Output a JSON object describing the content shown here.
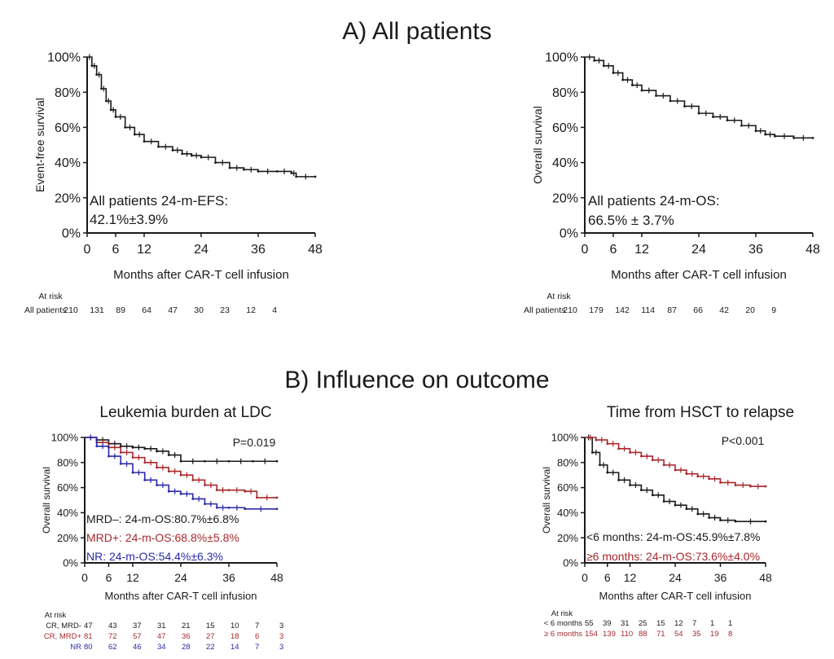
{
  "figure": {
    "section_a_title": "A) All patients",
    "section_b_title": "B) Influence on outcome"
  },
  "colors": {
    "black": "#1a1a1a",
    "red": "#a8282c",
    "blue": "#2a2aa6",
    "gray": "#5a5a5a"
  },
  "chart_data": [
    {
      "id": "efs",
      "type": "line",
      "subtitle": "",
      "xlabel": "Months after CAR-T cell infusion",
      "ylabel": "Event-free survival",
      "xticks": [
        0,
        6,
        12,
        24,
        36,
        48
      ],
      "yticks": [
        "0%",
        "20%",
        "40%",
        "60%",
        "80%",
        "100%"
      ],
      "xlim": [
        0,
        48
      ],
      "ylim": [
        0,
        100
      ],
      "annotations": [
        {
          "text": "All patients  24-m-EFS:",
          "color": "black"
        },
        {
          "text": "42.1%±3.9%",
          "color": "black"
        }
      ],
      "pvalue": "",
      "series": [
        {
          "name": "All patients",
          "color": "black",
          "x": [
            0,
            1,
            2,
            3,
            4,
            5,
            6,
            8,
            10,
            12,
            15,
            18,
            20,
            22,
            24,
            27,
            30,
            33,
            36,
            40,
            43,
            44,
            48
          ],
          "y": [
            100,
            95,
            90,
            82,
            75,
            70,
            66,
            60,
            56,
            52,
            49,
            47,
            45,
            44,
            43,
            40,
            37,
            36,
            35,
            35,
            34,
            32,
            32
          ]
        }
      ],
      "at_risk": {
        "header": "At risk",
        "rows": [
          {
            "label": "All patients",
            "values": [
              "210",
              "131",
              "89",
              "64",
              "47",
              "30",
              "23",
              "12",
              "4"
            ],
            "color": "black"
          }
        ]
      }
    },
    {
      "id": "os",
      "type": "line",
      "subtitle": "",
      "xlabel": "Months after CAR-T cell infusion",
      "ylabel": "Overall survival",
      "xticks": [
        0,
        6,
        12,
        24,
        36,
        48
      ],
      "yticks": [
        "0%",
        "20%",
        "40%",
        "60%",
        "80%",
        "100%"
      ],
      "xlim": [
        0,
        48
      ],
      "ylim": [
        0,
        100
      ],
      "annotations": [
        {
          "text": "All patients 24-m-OS:",
          "color": "black"
        },
        {
          "text": "66.5% ± 3.7%",
          "color": "black"
        }
      ],
      "pvalue": "",
      "series": [
        {
          "name": "All patients",
          "color": "black",
          "x": [
            0,
            2,
            4,
            6,
            8,
            10,
            12,
            15,
            18,
            21,
            24,
            27,
            30,
            33,
            36,
            38,
            40,
            44,
            48
          ],
          "y": [
            100,
            98,
            95,
            91,
            87,
            84,
            81,
            78,
            75,
            72,
            68,
            66,
            64,
            61,
            58,
            56,
            55,
            54,
            54
          ]
        }
      ],
      "at_risk": {
        "header": "At risk",
        "rows": [
          {
            "label": "All patients",
            "values": [
              "210",
              "179",
              "142",
              "114",
              "87",
              "66",
              "42",
              "20",
              "9"
            ],
            "color": "black"
          }
        ]
      }
    },
    {
      "id": "ldc",
      "type": "line",
      "subtitle": "Leukemia burden at LDC",
      "xlabel": "Months after CAR-T cell infusion",
      "ylabel": "Overall survival",
      "xticks": [
        0,
        6,
        12,
        24,
        36,
        48
      ],
      "yticks": [
        "0%",
        "20%",
        "40%",
        "60%",
        "80%",
        "100%"
      ],
      "xlim": [
        0,
        48
      ],
      "ylim": [
        0,
        100
      ],
      "annotations": [
        {
          "text": "MRD–: 24-m-OS:80.7%±6.8%",
          "color": "black"
        },
        {
          "text": "MRD+: 24-m-OS:68.8%±5.8%",
          "color": "red"
        },
        {
          "text": "NR:    24-m-OS:54.4%±6.3%",
          "color": "blue"
        }
      ],
      "pvalue": "P=0.019",
      "series": [
        {
          "name": "CR, MRD-",
          "color": "black",
          "x": [
            0,
            3,
            6,
            9,
            12,
            15,
            18,
            21,
            24,
            30,
            36,
            42,
            48
          ],
          "y": [
            100,
            98,
            95,
            93,
            92,
            91,
            89,
            86,
            81,
            81,
            81,
            81,
            81
          ]
        },
        {
          "name": "CR, MRD+",
          "color": "red",
          "x": [
            0,
            3,
            6,
            9,
            12,
            15,
            18,
            21,
            24,
            27,
            30,
            33,
            36,
            40,
            43,
            48
          ],
          "y": [
            100,
            96,
            92,
            88,
            84,
            80,
            76,
            73,
            70,
            66,
            62,
            58,
            58,
            57,
            52,
            52
          ]
        },
        {
          "name": "NR",
          "color": "blue",
          "x": [
            0,
            3,
            6,
            9,
            12,
            15,
            18,
            21,
            24,
            27,
            30,
            33,
            36,
            40,
            48
          ],
          "y": [
            100,
            93,
            85,
            79,
            72,
            66,
            62,
            57,
            55,
            51,
            47,
            44,
            44,
            43,
            43
          ]
        }
      ],
      "at_risk": {
        "header": "At risk",
        "rows": [
          {
            "label": "CR, MRD-",
            "values": [
              "47",
              "43",
              "37",
              "31",
              "21",
              "15",
              "10",
              "7",
              "3"
            ],
            "color": "black"
          },
          {
            "label": "CR, MRD+",
            "values": [
              "81",
              "72",
              "57",
              "47",
              "36",
              "27",
              "18",
              "6",
              "3"
            ],
            "color": "red"
          },
          {
            "label": "NR",
            "values": [
              "80",
              "62",
              "46",
              "34",
              "28",
              "22",
              "14",
              "7",
              "3"
            ],
            "color": "blue"
          }
        ]
      }
    },
    {
      "id": "hsct",
      "type": "line",
      "subtitle": "Time from HSCT to relapse",
      "xlabel": "Months after CAR-T cell infusion",
      "ylabel": "Overall survival",
      "xticks": [
        0,
        6,
        12,
        24,
        36,
        48
      ],
      "yticks": [
        "0%",
        "20%",
        "40%",
        "60%",
        "80%",
        "100%"
      ],
      "xlim": [
        0,
        48
      ],
      "ylim": [
        0,
        100
      ],
      "annotations": [
        {
          "text": "<6 months: 24-m-OS:45.9%±7.8%",
          "color": "black"
        },
        {
          "text": "≥6 months: 24-m-OS:73.6%±4.0%",
          "color": "red"
        }
      ],
      "pvalue": "P<0.001",
      "series": [
        {
          "name": "< 6 months",
          "color": "black",
          "x": [
            0,
            2,
            4,
            6,
            9,
            12,
            15,
            18,
            21,
            24,
            27,
            30,
            33,
            36,
            40,
            48
          ],
          "y": [
            100,
            88,
            78,
            72,
            66,
            62,
            58,
            54,
            49,
            46,
            43,
            39,
            36,
            34,
            33,
            33
          ]
        },
        {
          "name": "≥ 6 months",
          "color": "red",
          "x": [
            0,
            3,
            6,
            9,
            12,
            15,
            18,
            21,
            24,
            27,
            30,
            33,
            36,
            40,
            44,
            48
          ],
          "y": [
            100,
            98,
            95,
            91,
            88,
            85,
            82,
            78,
            74,
            71,
            69,
            67,
            64,
            62,
            61,
            61
          ]
        }
      ],
      "at_risk": {
        "header": "At risk",
        "rows": [
          {
            "label": "< 6 months",
            "values": [
              "55",
              "39",
              "31",
              "25",
              "15",
              "12",
              "7",
              "1",
              "1"
            ],
            "color": "black"
          },
          {
            "label": "≥ 6 months",
            "values": [
              "154",
              "139",
              "110",
              "88",
              "71",
              "54",
              "35",
              "19",
              "8"
            ],
            "color": "red"
          }
        ]
      }
    }
  ]
}
